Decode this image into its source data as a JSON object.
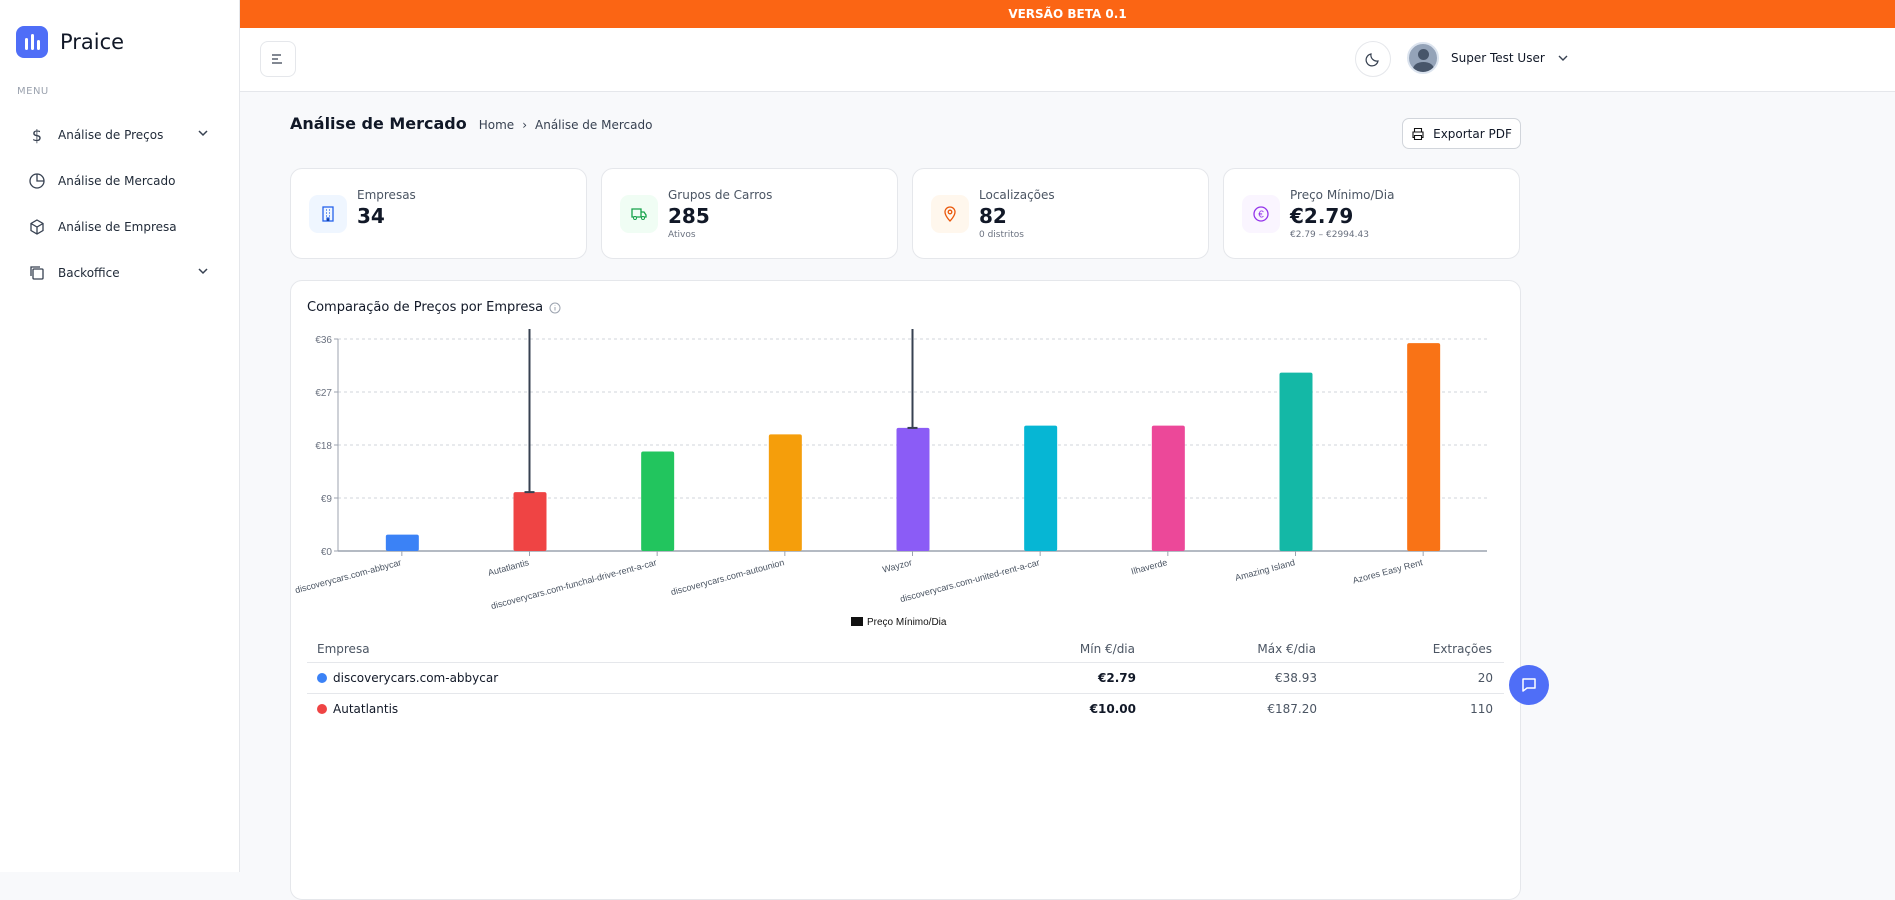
{
  "app": {
    "name": "Praice",
    "beta_banner": "VERSÃO BETA 0.1"
  },
  "sidebar": {
    "menu_label": "MENU",
    "items": [
      {
        "label": "Análise de Preços",
        "icon": "dollar-icon",
        "expandable": true
      },
      {
        "label": "Análise de Mercado",
        "icon": "pie-chart-icon",
        "expandable": false
      },
      {
        "label": "Análise de Empresa",
        "icon": "box-icon",
        "expandable": false
      },
      {
        "label": "Backoffice",
        "icon": "copy-icon",
        "expandable": true
      }
    ]
  },
  "header": {
    "user_name": "Super Test User"
  },
  "page": {
    "title": "Análise de Mercado",
    "breadcrumb": [
      "Home",
      "Análise de Mercado"
    ],
    "export_label": "Exportar PDF"
  },
  "stats": [
    {
      "label": "Empresas",
      "value": "34",
      "sub": "",
      "icon": "building-icon",
      "color": "#2563eb",
      "bg": "#eff6ff"
    },
    {
      "label": "Grupos de Carros",
      "value": "285",
      "sub": "Ativos",
      "icon": "truck-icon",
      "color": "#16a34a",
      "bg": "#f0fdf4"
    },
    {
      "label": "Localizações",
      "value": "82",
      "sub": "0 distritos",
      "icon": "map-pin-icon",
      "color": "#ea580c",
      "bg": "#fff7ed"
    },
    {
      "label": "Preço Mínimo/Dia",
      "value": "€2.79",
      "sub": "€2.79 – €2994.43",
      "icon": "euro-icon",
      "color": "#9333ea",
      "bg": "#faf5ff"
    }
  ],
  "chart_data": {
    "type": "bar",
    "title": "Comparação de Preços por Empresa",
    "ylim": [
      0,
      36
    ],
    "yticks": [
      "€0",
      "€9",
      "€18",
      "€27",
      "€36"
    ],
    "grid": true,
    "legend": "bottom",
    "legend_label": "Preço Mínimo/Dia",
    "categories": [
      "discoverycars.com-abbycar",
      "Autatlantis",
      "discoverycars.com-funchal-drive-rent-a-car",
      "discoverycars.com-autounion",
      "Wayzor",
      "discoverycars.com-united-rent-a-car",
      "Ilhaverde",
      "Amazing Island",
      "Azores Easy Rent"
    ],
    "values": [
      2.79,
      10.0,
      16.9,
      19.8,
      20.9,
      21.3,
      21.3,
      30.3,
      35.3
    ],
    "error_bars": [
      null,
      187.2,
      null,
      null,
      "above range",
      null,
      null,
      null,
      null
    ],
    "colors": [
      "#3b82f6",
      "#ef4444",
      "#22c55e",
      "#f59e0b",
      "#8b5cf6",
      "#06b6d4",
      "#ec4899",
      "#14b8a6",
      "#f97316"
    ]
  },
  "table": {
    "headers": [
      "Empresa",
      "Mín €/dia",
      "Máx €/dia",
      "Extrações"
    ],
    "rows": [
      {
        "name": "discoverycars.com-abbycar",
        "min": "€2.79",
        "max": "€38.93",
        "extractions": "20",
        "color": "#3b82f6"
      },
      {
        "name": "Autatlantis",
        "min": "€10.00",
        "max": "€187.20",
        "extractions": "110",
        "color": "#ef4444"
      }
    ]
  }
}
